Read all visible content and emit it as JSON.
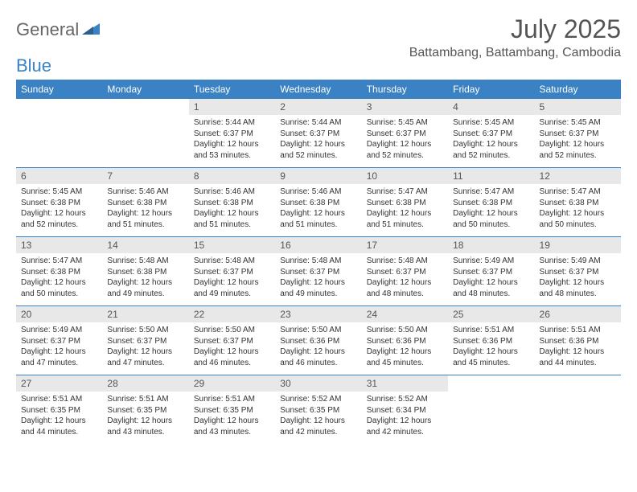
{
  "brand": {
    "general": "General",
    "blue": "Blue"
  },
  "header": {
    "title": "July 2025",
    "location": "Battambang, Battambang, Cambodia"
  },
  "colors": {
    "header_bg": "#3b82c4",
    "header_text": "#ffffff",
    "daynum_bg": "#e8e8e8",
    "border": "#3b82c4",
    "text": "#333333",
    "title_text": "#555555"
  },
  "weekdays": [
    "Sunday",
    "Monday",
    "Tuesday",
    "Wednesday",
    "Thursday",
    "Friday",
    "Saturday"
  ],
  "weeks": [
    [
      null,
      null,
      {
        "num": "1",
        "sunrise": "5:44 AM",
        "sunset": "6:37 PM",
        "daylight": "12 hours and 53 minutes."
      },
      {
        "num": "2",
        "sunrise": "5:44 AM",
        "sunset": "6:37 PM",
        "daylight": "12 hours and 52 minutes."
      },
      {
        "num": "3",
        "sunrise": "5:45 AM",
        "sunset": "6:37 PM",
        "daylight": "12 hours and 52 minutes."
      },
      {
        "num": "4",
        "sunrise": "5:45 AM",
        "sunset": "6:37 PM",
        "daylight": "12 hours and 52 minutes."
      },
      {
        "num": "5",
        "sunrise": "5:45 AM",
        "sunset": "6:37 PM",
        "daylight": "12 hours and 52 minutes."
      }
    ],
    [
      {
        "num": "6",
        "sunrise": "5:45 AM",
        "sunset": "6:38 PM",
        "daylight": "12 hours and 52 minutes."
      },
      {
        "num": "7",
        "sunrise": "5:46 AM",
        "sunset": "6:38 PM",
        "daylight": "12 hours and 51 minutes."
      },
      {
        "num": "8",
        "sunrise": "5:46 AM",
        "sunset": "6:38 PM",
        "daylight": "12 hours and 51 minutes."
      },
      {
        "num": "9",
        "sunrise": "5:46 AM",
        "sunset": "6:38 PM",
        "daylight": "12 hours and 51 minutes."
      },
      {
        "num": "10",
        "sunrise": "5:47 AM",
        "sunset": "6:38 PM",
        "daylight": "12 hours and 51 minutes."
      },
      {
        "num": "11",
        "sunrise": "5:47 AM",
        "sunset": "6:38 PM",
        "daylight": "12 hours and 50 minutes."
      },
      {
        "num": "12",
        "sunrise": "5:47 AM",
        "sunset": "6:38 PM",
        "daylight": "12 hours and 50 minutes."
      }
    ],
    [
      {
        "num": "13",
        "sunrise": "5:47 AM",
        "sunset": "6:38 PM",
        "daylight": "12 hours and 50 minutes."
      },
      {
        "num": "14",
        "sunrise": "5:48 AM",
        "sunset": "6:38 PM",
        "daylight": "12 hours and 49 minutes."
      },
      {
        "num": "15",
        "sunrise": "5:48 AM",
        "sunset": "6:37 PM",
        "daylight": "12 hours and 49 minutes."
      },
      {
        "num": "16",
        "sunrise": "5:48 AM",
        "sunset": "6:37 PM",
        "daylight": "12 hours and 49 minutes."
      },
      {
        "num": "17",
        "sunrise": "5:48 AM",
        "sunset": "6:37 PM",
        "daylight": "12 hours and 48 minutes."
      },
      {
        "num": "18",
        "sunrise": "5:49 AM",
        "sunset": "6:37 PM",
        "daylight": "12 hours and 48 minutes."
      },
      {
        "num": "19",
        "sunrise": "5:49 AM",
        "sunset": "6:37 PM",
        "daylight": "12 hours and 48 minutes."
      }
    ],
    [
      {
        "num": "20",
        "sunrise": "5:49 AM",
        "sunset": "6:37 PM",
        "daylight": "12 hours and 47 minutes."
      },
      {
        "num": "21",
        "sunrise": "5:50 AM",
        "sunset": "6:37 PM",
        "daylight": "12 hours and 47 minutes."
      },
      {
        "num": "22",
        "sunrise": "5:50 AM",
        "sunset": "6:37 PM",
        "daylight": "12 hours and 46 minutes."
      },
      {
        "num": "23",
        "sunrise": "5:50 AM",
        "sunset": "6:36 PM",
        "daylight": "12 hours and 46 minutes."
      },
      {
        "num": "24",
        "sunrise": "5:50 AM",
        "sunset": "6:36 PM",
        "daylight": "12 hours and 45 minutes."
      },
      {
        "num": "25",
        "sunrise": "5:51 AM",
        "sunset": "6:36 PM",
        "daylight": "12 hours and 45 minutes."
      },
      {
        "num": "26",
        "sunrise": "5:51 AM",
        "sunset": "6:36 PM",
        "daylight": "12 hours and 44 minutes."
      }
    ],
    [
      {
        "num": "27",
        "sunrise": "5:51 AM",
        "sunset": "6:35 PM",
        "daylight": "12 hours and 44 minutes."
      },
      {
        "num": "28",
        "sunrise": "5:51 AM",
        "sunset": "6:35 PM",
        "daylight": "12 hours and 43 minutes."
      },
      {
        "num": "29",
        "sunrise": "5:51 AM",
        "sunset": "6:35 PM",
        "daylight": "12 hours and 43 minutes."
      },
      {
        "num": "30",
        "sunrise": "5:52 AM",
        "sunset": "6:35 PM",
        "daylight": "12 hours and 42 minutes."
      },
      {
        "num": "31",
        "sunrise": "5:52 AM",
        "sunset": "6:34 PM",
        "daylight": "12 hours and 42 minutes."
      },
      null,
      null
    ]
  ],
  "labels": {
    "sunrise": "Sunrise:",
    "sunset": "Sunset:",
    "daylight": "Daylight:"
  }
}
